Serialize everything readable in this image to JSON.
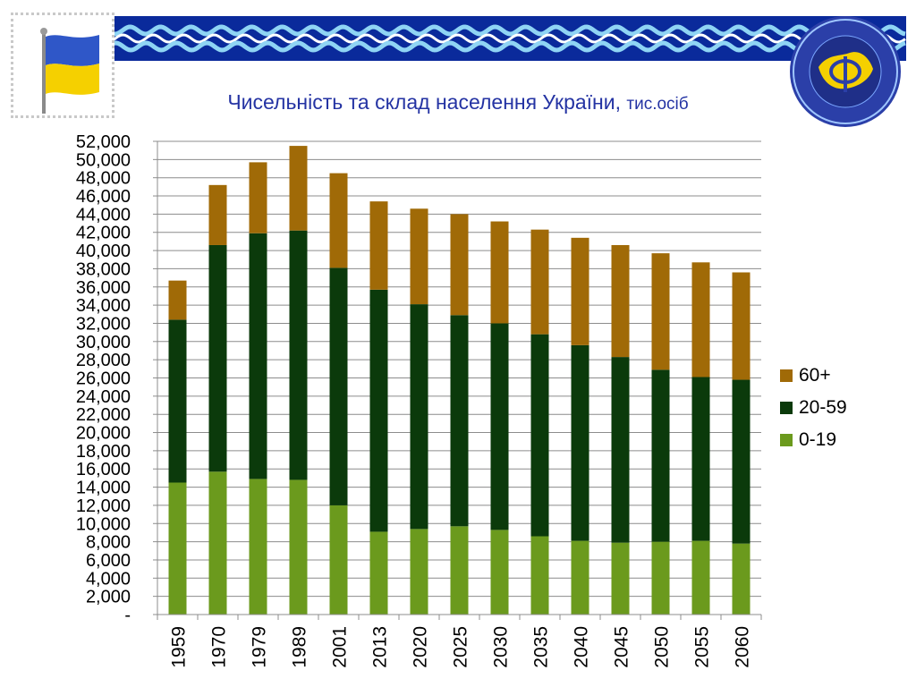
{
  "slide": {
    "title": "Чисельність та склад населення України,",
    "title_unit": "тис.осіб"
  },
  "colors": {
    "banner": "#0a2a9b",
    "wave_light": "#8fd4f4",
    "wave_white": "#ffffff",
    "flag_blue": "#2f57c8",
    "flag_yellow": "#f5d000",
    "title": "#2433a3"
  },
  "icons": {
    "flag": "ukraine-flag-icon",
    "emblem": "institute-emblem-icon"
  },
  "chart_data": {
    "type": "bar",
    "stacked": true,
    "categories": [
      "1959",
      "1970",
      "1979",
      "1989",
      "2001",
      "2013",
      "2020",
      "2025",
      "2030",
      "2035",
      "2040",
      "2045",
      "2050",
      "2055",
      "2060"
    ],
    "series": [
      {
        "name": "0-19",
        "color": "#6b9a1d",
        "values": [
          14500,
          15700,
          14900,
          14800,
          12000,
          9100,
          9400,
          9700,
          9300,
          8600,
          8100,
          7900,
          8000,
          8100,
          7800
        ]
      },
      {
        "name": "20-59",
        "color": "#0b3a0b",
        "values": [
          17900,
          24900,
          27000,
          27400,
          26100,
          26600,
          24700,
          23200,
          22700,
          22200,
          21500,
          20400,
          18900,
          18000,
          18000
        ]
      },
      {
        "name": "60+",
        "color": "#a06a07",
        "values": [
          4300,
          6600,
          7800,
          9300,
          10400,
          9700,
          10500,
          11100,
          11200,
          11500,
          11800,
          12300,
          12800,
          12600,
          11800
        ]
      }
    ],
    "ylim": [
      0,
      52000
    ],
    "ytick_step": 2000,
    "ytick_labels": [
      "-",
      "2,000",
      "4,000",
      "6,000",
      "8,000",
      "10,000",
      "12,000",
      "14,000",
      "16,000",
      "18,000",
      "20,000",
      "22,000",
      "24,000",
      "26,000",
      "28,000",
      "30,000",
      "32,000",
      "34,000",
      "36,000",
      "38,000",
      "40,000",
      "42,000",
      "44,000",
      "46,000",
      "48,000",
      "50,000",
      "52,000"
    ],
    "legend_order": [
      "60+",
      "20-59",
      "0-19"
    ],
    "legend_position": "right",
    "grid": true,
    "xlabel": "",
    "ylabel": ""
  }
}
